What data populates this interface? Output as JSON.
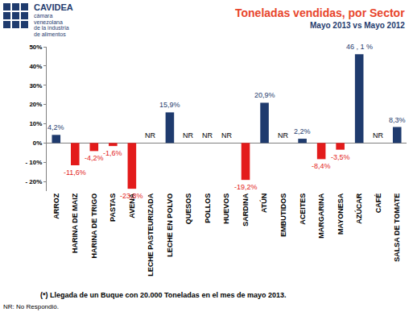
{
  "chart_data": {
    "type": "bar",
    "title": "Toneladas vendidas, por Sector",
    "subtitle": "Mayo 2013 vs Mayo 2012",
    "logo": {
      "name": "CAVIDEA",
      "text": [
        "cámara",
        "venezolana",
        "de la industria",
        "de alimentos"
      ]
    },
    "categories": [
      "ARROZ",
      "HARINA DE MAIZ",
      "HARINA DE TRIGO",
      "PASTAS",
      "AVENA",
      "LECHE PASTEURIZADA",
      "LECHE EN POLVO",
      "QUESOS",
      "POLLOS",
      "HUEVOS",
      "SARDINA",
      "ATÚN",
      "EMBUTIDOS",
      "ACEITES",
      "MARGARINA",
      "MAYONESA",
      "AZÚCAR",
      "CAFÉ",
      "SALSA DE TOMATE"
    ],
    "values": [
      4.2,
      -11.6,
      -4.2,
      -1.6,
      -23.8,
      null,
      15.9,
      null,
      null,
      null,
      -19.2,
      20.9,
      null,
      2.2,
      -8.4,
      -3.5,
      46.1,
      null,
      8.3
    ],
    "value_labels": [
      "4,2%",
      "-11,6%",
      "-4,2%",
      "-1,6%",
      "-23,8%",
      "NR",
      "15,9%",
      "NR",
      "NR",
      "NR",
      "-19,2%",
      "20,9%",
      "NR",
      "2,2%",
      "-8,4%",
      "-3,5%",
      "46 , 1 %",
      "NR",
      "8,3%"
    ],
    "colors": [
      "#1f3b6e",
      "#e31b1b",
      "#e31b1b",
      "#e31b1b",
      "#e31b1b",
      "#000000",
      "#1f3b6e",
      "#000000",
      "#000000",
      "#000000",
      "#e31b1b",
      "#1f3b6e",
      "#000000",
      "#1f3b6e",
      "#e31b1b",
      "#e31b1b",
      "#1f3b6e",
      "#000000",
      "#1f3b6e"
    ],
    "data_labels": true,
    "ylim": [
      -25,
      50
    ],
    "yticks": [
      {
        "value": -20,
        "label": "- 20%"
      },
      {
        "value": -10,
        "label": "- 10%"
      },
      {
        "value": 0,
        "label": "0%"
      },
      {
        "value": 10,
        "label": "10%"
      },
      {
        "value": 20,
        "label": "20%"
      },
      {
        "value": 30,
        "label": "30%"
      },
      {
        "value": 40,
        "label": "40%"
      },
      {
        "value": 50,
        "label": "50%"
      }
    ],
    "grid": false,
    "notes": [
      "(*) Llegada de un Buque con 20.000 Toneladas en el mes de mayo 2013.",
      "NR: No Respondió."
    ]
  }
}
